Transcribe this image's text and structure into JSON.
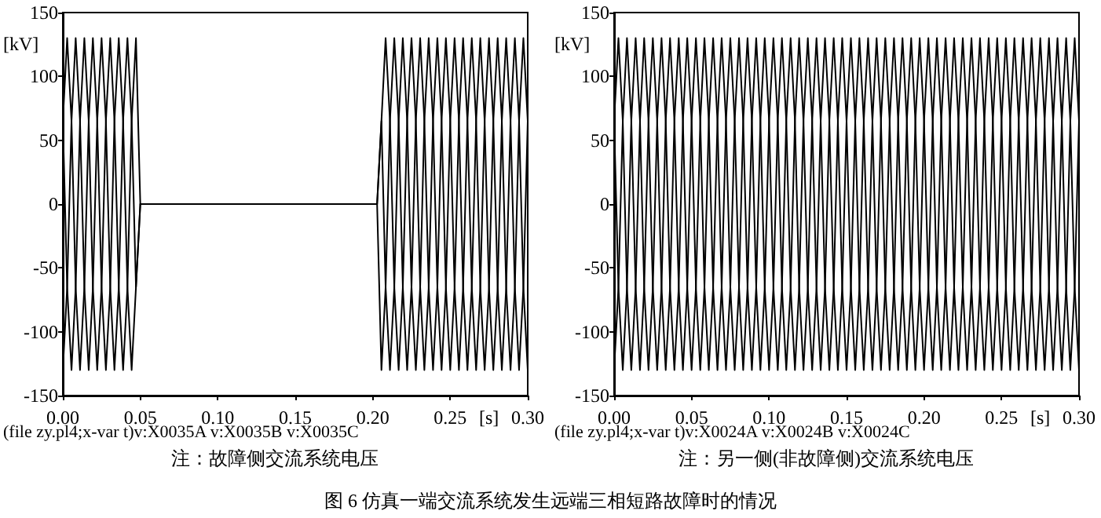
{
  "chart_data": [
    {
      "type": "line",
      "ylabel": "[kV]",
      "xlabel": "[s]",
      "annotations": [
        "(file zy.pl4;x-var t)v:X0035A v:X0035B v:X0035C",
        "注：故障侧交流系统电压"
      ],
      "xlim": [
        0,
        0.3
      ],
      "ylim": [
        -150,
        150
      ],
      "xticks": [
        {
          "value": 0,
          "label": "0.00"
        },
        {
          "value": 0.05,
          "label": "0.05"
        },
        {
          "value": 0.1,
          "label": "0.10"
        },
        {
          "value": 0.15,
          "label": "0.15"
        },
        {
          "value": 0.2,
          "label": "0.20"
        },
        {
          "value": 0.25,
          "label": "0.25"
        },
        {
          "value": 0.3,
          "label": "0.30"
        }
      ],
      "yticks": [
        -150,
        -100,
        -50,
        0,
        50,
        100,
        150
      ],
      "grid": false,
      "marker": "none",
      "x": [
        0,
        0.0028,
        0.0056,
        0.0083,
        0.0111,
        0.0139,
        0.0167,
        0.0194,
        0.0222,
        0.025,
        0.0278,
        0.0306,
        0.0333,
        0.0361,
        0.0389,
        0.0417,
        0.0444,
        0.0472,
        0.05,
        0.0528,
        0.0556,
        0.0583,
        0.0611,
        0.0639,
        0.0667,
        0.0694,
        0.0722,
        0.075,
        0.0778,
        0.0806,
        0.0833,
        0.0861,
        0.0889,
        0.0917,
        0.0944,
        0.0972,
        0.1,
        0.1028,
        0.1056,
        0.1083,
        0.1111,
        0.1139,
        0.1167,
        0.1194,
        0.1222,
        0.125,
        0.1278,
        0.1306,
        0.1333,
        0.1361,
        0.1389,
        0.1417,
        0.1444,
        0.1472,
        0.15,
        0.1528,
        0.1556,
        0.1583,
        0.1611,
        0.1639,
        0.1667,
        0.1694,
        0.1722,
        0.175,
        0.1778,
        0.1806,
        0.1833,
        0.1861,
        0.1889,
        0.1917,
        0.1944,
        0.1972,
        0.2,
        0.2028,
        0.2056,
        0.2083,
        0.2111,
        0.2139,
        0.2167,
        0.2194,
        0.2222,
        0.225,
        0.2278,
        0.2306,
        0.2333,
        0.2361,
        0.2389,
        0.2417,
        0.2444,
        0.2472,
        0.25,
        0.2528,
        0.2556,
        0.2583,
        0.2611,
        0.2639,
        0.2667,
        0.2694,
        0.2722,
        0.275,
        0.2778,
        0.2806,
        0.2833,
        0.2861,
        0.2889,
        0.2917,
        0.2944,
        0.2972,
        0.3
      ],
      "series": [
        {
          "color": "#000000",
          "values": [
            65,
            130,
            65,
            -65,
            -130,
            -65,
            65,
            130,
            65,
            -65,
            -130,
            -65,
            65,
            130,
            65,
            -65,
            -130,
            -65,
            0,
            0,
            0,
            0,
            0,
            0,
            0,
            0,
            0,
            0,
            0,
            0,
            0,
            0,
            0,
            0,
            0,
            0,
            0,
            0,
            0,
            0,
            0,
            0,
            0,
            0,
            0,
            0,
            0,
            0,
            0,
            0,
            0,
            0,
            0,
            0,
            0,
            0,
            0,
            0,
            0,
            0,
            0,
            0,
            0,
            0,
            0,
            0,
            0,
            0,
            0,
            0,
            0,
            0,
            0,
            0,
            65,
            -65,
            -130,
            -65,
            65,
            130,
            65,
            -65,
            -130,
            -65,
            65,
            130,
            65,
            -65,
            -130,
            -65,
            65,
            130,
            65,
            -65,
            -130,
            -65,
            65,
            130,
            65,
            -65,
            -130,
            -65,
            65,
            130,
            65,
            -65,
            -130,
            -65,
            65
          ]
        },
        {
          "color": "#000000",
          "values": [
            -130,
            -65,
            65,
            130,
            65,
            -65,
            -130,
            -65,
            65,
            130,
            65,
            -65,
            -130,
            -65,
            65,
            130,
            65,
            -65,
            0,
            0,
            0,
            0,
            0,
            0,
            0,
            0,
            0,
            0,
            0,
            0,
            0,
            0,
            0,
            0,
            0,
            0,
            0,
            0,
            0,
            0,
            0,
            0,
            0,
            0,
            0,
            0,
            0,
            0,
            0,
            0,
            0,
            0,
            0,
            0,
            0,
            0,
            0,
            0,
            0,
            0,
            0,
            0,
            0,
            0,
            0,
            0,
            0,
            0,
            0,
            0,
            0,
            0,
            0,
            0,
            65,
            130,
            65,
            -65,
            -130,
            -65,
            65,
            130,
            65,
            -65,
            -130,
            -65,
            65,
            130,
            65,
            -65,
            -130,
            -65,
            65,
            130,
            65,
            -65,
            -130,
            -65,
            65,
            130,
            65,
            -65,
            -130,
            -65,
            65,
            130,
            65,
            -65,
            -130
          ]
        },
        {
          "color": "#000000",
          "values": [
            65,
            -65,
            -130,
            -65,
            65,
            130,
            65,
            -65,
            -130,
            -65,
            65,
            130,
            65,
            -65,
            -130,
            -65,
            65,
            130,
            0,
            0,
            0,
            0,
            0,
            0,
            0,
            0,
            0,
            0,
            0,
            0,
            0,
            0,
            0,
            0,
            0,
            0,
            0,
            0,
            0,
            0,
            0,
            0,
            0,
            0,
            0,
            0,
            0,
            0,
            0,
            0,
            0,
            0,
            0,
            0,
            0,
            0,
            0,
            0,
            0,
            0,
            0,
            0,
            0,
            0,
            0,
            0,
            0,
            0,
            0,
            0,
            0,
            0,
            0,
            0,
            -130,
            -65,
            65,
            130,
            65,
            -65,
            -130,
            -65,
            65,
            130,
            65,
            -65,
            -130,
            -65,
            65,
            130,
            65,
            -65,
            -130,
            -65,
            65,
            130,
            65,
            -65,
            -130,
            -65,
            65,
            130,
            65,
            -65,
            -130,
            -65,
            65,
            130,
            65
          ]
        }
      ]
    },
    {
      "type": "line",
      "ylabel": "[kV]",
      "xlabel": "[s]",
      "annotations": [
        "(file zy.pl4;x-var t)v:X0024A v:X0024B v:X0024C",
        "注：另一侧(非故障侧)交流系统电压",
        "图 6 仿真一端交流系统发生远端三相短路故障时的情况"
      ],
      "xlim": [
        0,
        0.3
      ],
      "ylim": [
        -150,
        150
      ],
      "xticks": [
        {
          "value": 0,
          "label": "0.00"
        },
        {
          "value": 0.05,
          "label": "0.05"
        },
        {
          "value": 0.1,
          "label": "0.10"
        },
        {
          "value": 0.15,
          "label": "0.15"
        },
        {
          "value": 0.2,
          "label": "0.20"
        },
        {
          "value": 0.25,
          "label": "0.25"
        },
        {
          "value": 0.3,
          "label": "0.30"
        }
      ],
      "yticks": [
        -150,
        -100,
        -50,
        0,
        50,
        100,
        150
      ],
      "grid": false,
      "marker": "none",
      "x": [
        0,
        0.0028,
        0.0056,
        0.0083,
        0.0111,
        0.0139,
        0.0167,
        0.0194,
        0.0222,
        0.025,
        0.0278,
        0.0306,
        0.0333,
        0.0361,
        0.0389,
        0.0417,
        0.0444,
        0.0472,
        0.05,
        0.0528,
        0.0556,
        0.0583,
        0.0611,
        0.0639,
        0.0667,
        0.0694,
        0.0722,
        0.075,
        0.0778,
        0.0806,
        0.0833,
        0.0861,
        0.0889,
        0.0917,
        0.0944,
        0.0972,
        0.1,
        0.1028,
        0.1056,
        0.1083,
        0.1111,
        0.1139,
        0.1167,
        0.1194,
        0.1222,
        0.125,
        0.1278,
        0.1306,
        0.1333,
        0.1361,
        0.1389,
        0.1417,
        0.1444,
        0.1472,
        0.15,
        0.1528,
        0.1556,
        0.1583,
        0.1611,
        0.1639,
        0.1667,
        0.1694,
        0.1722,
        0.175,
        0.1778,
        0.1806,
        0.1833,
        0.1861,
        0.1889,
        0.1917,
        0.1944,
        0.1972,
        0.2,
        0.2028,
        0.2056,
        0.2083,
        0.2111,
        0.2139,
        0.2167,
        0.2194,
        0.2222,
        0.225,
        0.2278,
        0.2306,
        0.2333,
        0.2361,
        0.2389,
        0.2417,
        0.2444,
        0.2472,
        0.25,
        0.2528,
        0.2556,
        0.2583,
        0.2611,
        0.2639,
        0.2667,
        0.2694,
        0.2722,
        0.275,
        0.2778,
        0.2806,
        0.2833,
        0.2861,
        0.2889,
        0.2917,
        0.2944,
        0.2972,
        0.3
      ],
      "series": [
        {
          "color": "#000000",
          "values": [
            65,
            130,
            65,
            -65,
            -130,
            -65,
            65,
            130,
            65,
            -65,
            -130,
            -65,
            65,
            130,
            65,
            -65,
            -130,
            -65,
            65,
            130,
            65,
            -65,
            -130,
            -65,
            65,
            130,
            65,
            -65,
            -130,
            -65,
            65,
            130,
            65,
            -65,
            -130,
            -65,
            65,
            130,
            65,
            -65,
            -130,
            -65,
            65,
            130,
            65,
            -65,
            -130,
            -65,
            65,
            130,
            65,
            -65,
            -130,
            -65,
            65,
            130,
            65,
            -65,
            -130,
            -65,
            65,
            130,
            65,
            -65,
            -130,
            -65,
            65,
            130,
            65,
            -65,
            -130,
            -65,
            65,
            130,
            65,
            -65,
            -130,
            -65,
            65,
            130,
            65,
            -65,
            -130,
            -65,
            65,
            130,
            65,
            -65,
            -130,
            -65,
            65,
            130,
            65,
            -65,
            -130,
            -65,
            65,
            130,
            65,
            -65,
            -130,
            -65,
            65,
            130,
            65,
            -65,
            -130,
            -65,
            65
          ]
        },
        {
          "color": "#000000",
          "values": [
            -130,
            -65,
            65,
            130,
            65,
            -65,
            -130,
            -65,
            65,
            130,
            65,
            -65,
            -130,
            -65,
            65,
            130,
            65,
            -65,
            -130,
            -65,
            65,
            130,
            65,
            -65,
            -130,
            -65,
            65,
            130,
            65,
            -65,
            -130,
            -65,
            65,
            130,
            65,
            -65,
            -130,
            -65,
            65,
            130,
            65,
            -65,
            -130,
            -65,
            65,
            130,
            65,
            -65,
            -130,
            -65,
            65,
            130,
            65,
            -65,
            -130,
            -65,
            65,
            130,
            65,
            -65,
            -130,
            -65,
            65,
            130,
            65,
            -65,
            -130,
            -65,
            65,
            130,
            65,
            -65,
            -130,
            -65,
            65,
            130,
            65,
            -65,
            -130,
            -65,
            65,
            130,
            65,
            -65,
            -130,
            -65,
            65,
            130,
            65,
            -65,
            -130,
            -65,
            65,
            130,
            65,
            -65,
            -130,
            -65,
            65,
            130,
            65,
            -65,
            -130,
            -65,
            65,
            130,
            65,
            -65,
            -130
          ]
        },
        {
          "color": "#000000",
          "values": [
            65,
            -65,
            -130,
            -65,
            65,
            130,
            65,
            -65,
            -130,
            -65,
            65,
            130,
            65,
            -65,
            -130,
            -65,
            65,
            130,
            65,
            -65,
            -130,
            -65,
            65,
            130,
            65,
            -65,
            -130,
            -65,
            65,
            130,
            65,
            -65,
            -130,
            -65,
            65,
            130,
            65,
            -65,
            -130,
            -65,
            65,
            130,
            65,
            -65,
            -130,
            -65,
            65,
            130,
            65,
            -65,
            -130,
            -65,
            65,
            130,
            65,
            -65,
            -130,
            -65,
            65,
            130,
            65,
            -65,
            -130,
            -65,
            65,
            130,
            65,
            -65,
            -130,
            -65,
            65,
            130,
            65,
            -65,
            -130,
            -65,
            65,
            130,
            65,
            -65,
            -130,
            -65,
            65,
            130,
            65,
            -65,
            -130,
            -65,
            65,
            130,
            65,
            -65,
            -130,
            -65,
            65,
            130,
            65,
            -65,
            -130,
            -65,
            65,
            130,
            65,
            -65,
            -130,
            -65,
            65,
            130,
            65
          ]
        }
      ]
    }
  ]
}
